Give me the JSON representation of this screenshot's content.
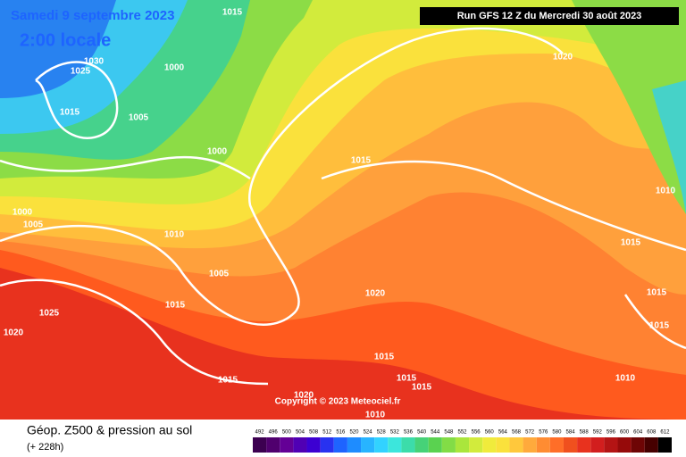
{
  "header": {
    "date": "Samedi 9 septembre 2023",
    "time": "2:00 locale",
    "run": "Run GFS 12 Z du Mercredi 30 août 2023"
  },
  "isobars": [
    "1015",
    "1030",
    "1025",
    "1000",
    "1015",
    "1005",
    "1000",
    "1015",
    "1020",
    "1010",
    "1000",
    "1005",
    "1010",
    "1015",
    "1005",
    "1020",
    "1015",
    "1015",
    "1025",
    "1015",
    "1020",
    "1015",
    "1015",
    "1015",
    "1015",
    "1020",
    "1010",
    "1010"
  ],
  "copyright": "Copyright © 2023 Meteociel.fr",
  "legend": {
    "title": "Géop. Z500 & pression au sol",
    "lead": "(+ 228h)",
    "scale": [
      492,
      496,
      500,
      504,
      508,
      512,
      516,
      520,
      524,
      528,
      532,
      536,
      540,
      544,
      548,
      552,
      556,
      560,
      564,
      568,
      572,
      576,
      580,
      584,
      588,
      592,
      596,
      600,
      604,
      608,
      612
    ]
  }
}
